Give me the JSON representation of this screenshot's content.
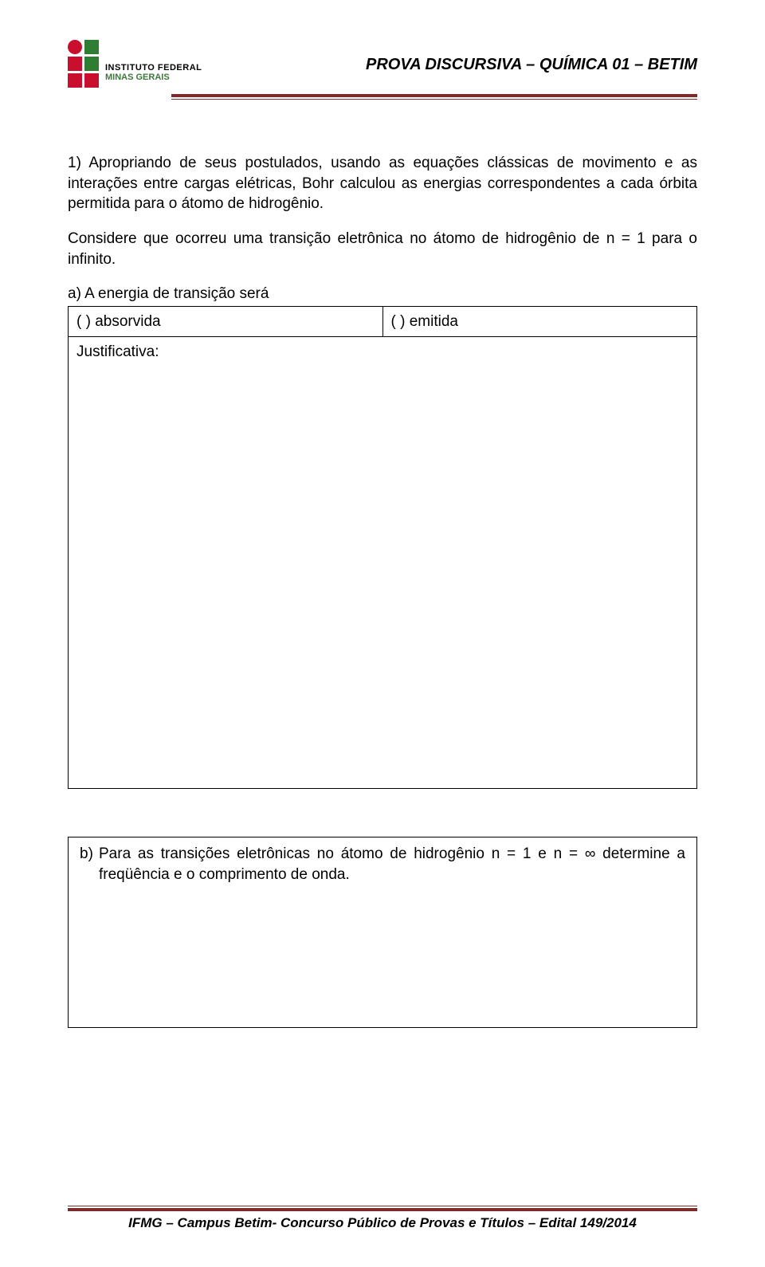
{
  "colors": {
    "red": "#c8102e",
    "green": "#2e7d32",
    "rule": "#7d2a2a",
    "text": "#000000",
    "logo_line2": "#3a7a3a"
  },
  "logo": {
    "line1": "INSTITUTO FEDERAL",
    "line2": "MINAS GERAIS"
  },
  "header": {
    "title": "PROVA DISCURSIVA – QUÍMICA 01 – BETIM"
  },
  "question": {
    "intro": "1) Apropriando de seus postulados, usando as equações clássicas de movimento e as interações entre cargas elétricas, Bohr calculou as energias correspondentes a cada órbita permitida para o átomo de hidrogênio.",
    "considere": "Considere que ocorreu uma transição eletrônica no átomo de hidrogênio de n = 1 para o infinito.",
    "a_label": "a) A energia de transição será",
    "option1": "(    ) absorvida",
    "option2": "(    ) emitida",
    "justificativa": "Justificativa:",
    "b_marker": "b)",
    "b_text": "Para as transições eletrônicas no átomo de hidrogênio n = 1 e n = ∞ determine a freqüência e o comprimento de onda."
  },
  "footer": {
    "text": "IFMG – Campus Betim- Concurso Público de Provas e Títulos – Edital 149/2014"
  }
}
